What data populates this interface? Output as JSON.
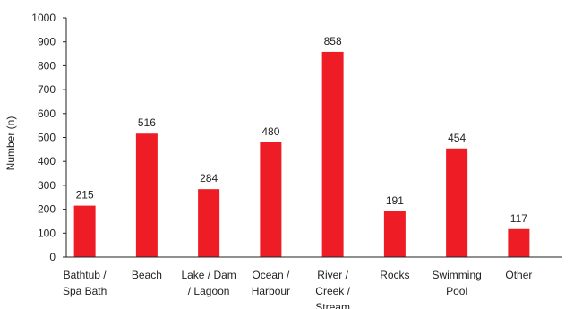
{
  "chart_data": {
    "type": "bar",
    "categories": [
      [
        "Bathtub /",
        "Spa Bath"
      ],
      [
        "Beach"
      ],
      [
        "Lake / Dam",
        "/ Lagoon"
      ],
      [
        "Ocean /",
        "Harbour"
      ],
      [
        "River /",
        "Creek /",
        "Stream"
      ],
      [
        "Rocks"
      ],
      [
        "Swimming",
        "Pool"
      ],
      [
        "Other"
      ]
    ],
    "values": [
      215,
      516,
      284,
      480,
      858,
      191,
      454,
      117
    ],
    "data_labels": [
      "215",
      "516",
      "284",
      "480",
      "858",
      "191",
      "454",
      "117"
    ],
    "title": "",
    "xlabel": "",
    "ylabel": "Number (n)",
    "ylim": [
      0,
      1000
    ],
    "yticks": [
      0,
      100,
      200,
      300,
      400,
      500,
      600,
      700,
      800,
      900,
      1000
    ],
    "ytick_labels": [
      "0",
      "100",
      "200",
      "300",
      "400",
      "500",
      "600",
      "700",
      "800",
      "900",
      "1000"
    ],
    "grid": false,
    "legend": "none",
    "colors": {
      "bar": "#ee1c25",
      "axis": "#222222"
    }
  }
}
